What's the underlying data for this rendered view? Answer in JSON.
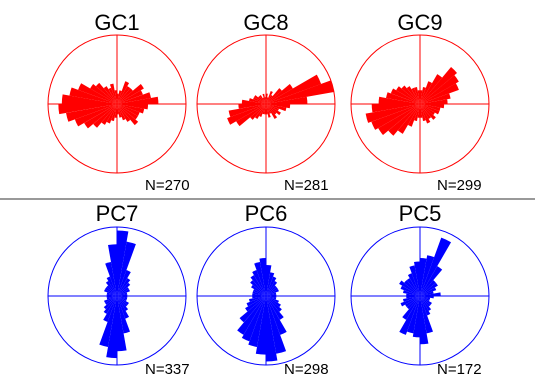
{
  "colors": {
    "gc": "#ff0000",
    "pc": "#0000ff",
    "divider": "#333333",
    "label": "#000000"
  },
  "chart_data": [
    {
      "type": "rose",
      "title": "GC1",
      "n_label": "N=270",
      "color": "#ff0000",
      "petals": [
        {
          "azimuth": 0,
          "length": 0.15
        },
        {
          "azimuth": 10,
          "length": 0.2
        },
        {
          "azimuth": 20,
          "length": 0.35
        },
        {
          "azimuth": 30,
          "length": 0.3
        },
        {
          "azimuth": 40,
          "length": 0.3
        },
        {
          "azimuth": 50,
          "length": 0.45
        },
        {
          "azimuth": 60,
          "length": 0.4
        },
        {
          "azimuth": 70,
          "length": 0.5
        },
        {
          "azimuth": 80,
          "length": 0.6
        },
        {
          "azimuth": 90,
          "length": 0.45
        },
        {
          "azimuth": 100,
          "length": 0.4
        },
        {
          "azimuth": 110,
          "length": 0.35
        },
        {
          "azimuth": 120,
          "length": 0.35
        },
        {
          "azimuth": 130,
          "length": 0.4
        },
        {
          "azimuth": 140,
          "length": 0.3
        },
        {
          "azimuth": 150,
          "length": 0.25
        },
        {
          "azimuth": 160,
          "length": 0.2
        },
        {
          "azimuth": 170,
          "length": 0.15
        },
        {
          "azimuth": 180,
          "length": 0.2
        },
        {
          "azimuth": 190,
          "length": 0.25
        },
        {
          "azimuth": 200,
          "length": 0.3
        },
        {
          "azimuth": 210,
          "length": 0.35
        },
        {
          "azimuth": 220,
          "length": 0.45
        },
        {
          "azimuth": 230,
          "length": 0.55
        },
        {
          "azimuth": 240,
          "length": 0.65
        },
        {
          "azimuth": 250,
          "length": 0.75
        },
        {
          "azimuth": 260,
          "length": 0.85
        },
        {
          "azimuth": 270,
          "length": 0.8
        },
        {
          "azimuth": 280,
          "length": 0.7
        },
        {
          "azimuth": 290,
          "length": 0.6
        },
        {
          "azimuth": 300,
          "length": 0.45
        },
        {
          "azimuth": 310,
          "length": 0.4
        },
        {
          "azimuth": 320,
          "length": 0.3
        },
        {
          "azimuth": 330,
          "length": 0.25
        },
        {
          "azimuth": 340,
          "length": 0.3
        },
        {
          "azimuth": 350,
          "length": 0.2
        }
      ]
    },
    {
      "type": "rose",
      "title": "GC8",
      "n_label": "N=281",
      "color": "#ff0000",
      "petals": [
        {
          "azimuth": 0,
          "length": 0.15
        },
        {
          "azimuth": 10,
          "length": 0.1
        },
        {
          "azimuth": 20,
          "length": 0.2
        },
        {
          "azimuth": 30,
          "length": 0.15
        },
        {
          "azimuth": 40,
          "length": 0.3
        },
        {
          "azimuth": 50,
          "length": 0.45
        },
        {
          "azimuth": 60,
          "length": 0.85
        },
        {
          "azimuth": 70,
          "length": 1.0
        },
        {
          "azimuth": 80,
          "length": 0.6
        },
        {
          "azimuth": 90,
          "length": 0.35
        },
        {
          "azimuth": 100,
          "length": 0.3
        },
        {
          "azimuth": 110,
          "length": 0.2
        },
        {
          "azimuth": 120,
          "length": 0.25
        },
        {
          "azimuth": 130,
          "length": 0.2
        },
        {
          "azimuth": 140,
          "length": 0.25
        },
        {
          "azimuth": 150,
          "length": 0.15
        },
        {
          "azimuth": 160,
          "length": 0.2
        },
        {
          "azimuth": 170,
          "length": 0.15
        },
        {
          "azimuth": 180,
          "length": 0.15
        },
        {
          "azimuth": 190,
          "length": 0.15
        },
        {
          "azimuth": 200,
          "length": 0.2
        },
        {
          "azimuth": 210,
          "length": 0.25
        },
        {
          "azimuth": 220,
          "length": 0.3
        },
        {
          "azimuth": 230,
          "length": 0.5
        },
        {
          "azimuth": 240,
          "length": 0.6
        },
        {
          "azimuth": 250,
          "length": 0.55
        },
        {
          "azimuth": 260,
          "length": 0.4
        },
        {
          "azimuth": 270,
          "length": 0.35
        },
        {
          "azimuth": 280,
          "length": 0.25
        },
        {
          "azimuth": 290,
          "length": 0.2
        },
        {
          "azimuth": 300,
          "length": 0.2
        },
        {
          "azimuth": 310,
          "length": 0.15
        },
        {
          "azimuth": 320,
          "length": 0.15
        },
        {
          "azimuth": 330,
          "length": 0.1
        },
        {
          "azimuth": 340,
          "length": 0.15
        },
        {
          "azimuth": 350,
          "length": 0.1
        }
      ]
    },
    {
      "type": "rose",
      "title": "GC9",
      "n_label": "N=299",
      "color": "#ff0000",
      "petals": [
        {
          "azimuth": 0,
          "length": 0.2
        },
        {
          "azimuth": 10,
          "length": 0.25
        },
        {
          "azimuth": 20,
          "length": 0.35
        },
        {
          "azimuth": 30,
          "length": 0.5
        },
        {
          "azimuth": 40,
          "length": 0.7
        },
        {
          "azimuth": 50,
          "length": 0.65
        },
        {
          "azimuth": 60,
          "length": 0.6
        },
        {
          "azimuth": 70,
          "length": 0.45
        },
        {
          "azimuth": 80,
          "length": 0.4
        },
        {
          "azimuth": 90,
          "length": 0.35
        },
        {
          "azimuth": 100,
          "length": 0.3
        },
        {
          "azimuth": 110,
          "length": 0.3
        },
        {
          "azimuth": 120,
          "length": 0.25
        },
        {
          "azimuth": 130,
          "length": 0.3
        },
        {
          "azimuth": 140,
          "length": 0.25
        },
        {
          "azimuth": 150,
          "length": 0.3
        },
        {
          "azimuth": 160,
          "length": 0.25
        },
        {
          "azimuth": 170,
          "length": 0.2
        },
        {
          "azimuth": 180,
          "length": 0.2
        },
        {
          "azimuth": 190,
          "length": 0.25
        },
        {
          "azimuth": 200,
          "length": 0.35
        },
        {
          "azimuth": 210,
          "length": 0.5
        },
        {
          "azimuth": 220,
          "length": 0.6
        },
        {
          "azimuth": 230,
          "length": 0.7
        },
        {
          "azimuth": 240,
          "length": 0.75
        },
        {
          "azimuth": 250,
          "length": 0.8
        },
        {
          "azimuth": 260,
          "length": 0.7
        },
        {
          "azimuth": 270,
          "length": 0.6
        },
        {
          "azimuth": 280,
          "length": 0.5
        },
        {
          "azimuth": 290,
          "length": 0.45
        },
        {
          "azimuth": 300,
          "length": 0.4
        },
        {
          "azimuth": 310,
          "length": 0.35
        },
        {
          "azimuth": 320,
          "length": 0.3
        },
        {
          "azimuth": 330,
          "length": 0.25
        },
        {
          "azimuth": 340,
          "length": 0.25
        },
        {
          "azimuth": 350,
          "length": 0.2
        }
      ]
    },
    {
      "type": "rose",
      "title": "PC7",
      "n_label": "N=337",
      "color": "#0000ff",
      "petals": [
        {
          "azimuth": 0,
          "length": 0.95
        },
        {
          "azimuth": 10,
          "length": 0.8
        },
        {
          "azimuth": 20,
          "length": 0.4
        },
        {
          "azimuth": 30,
          "length": 0.3
        },
        {
          "azimuth": 40,
          "length": 0.25
        },
        {
          "azimuth": 50,
          "length": 0.2
        },
        {
          "azimuth": 60,
          "length": 0.2
        },
        {
          "azimuth": 70,
          "length": 0.15
        },
        {
          "azimuth": 80,
          "length": 0.15
        },
        {
          "azimuth": 90,
          "length": 0.15
        },
        {
          "azimuth": 100,
          "length": 0.15
        },
        {
          "azimuth": 110,
          "length": 0.15
        },
        {
          "azimuth": 120,
          "length": 0.2
        },
        {
          "azimuth": 130,
          "length": 0.2
        },
        {
          "azimuth": 140,
          "length": 0.25
        },
        {
          "azimuth": 150,
          "length": 0.35
        },
        {
          "azimuth": 160,
          "length": 0.55
        },
        {
          "azimuth": 170,
          "length": 0.8
        },
        {
          "azimuth": 180,
          "length": 0.9
        },
        {
          "azimuth": 190,
          "length": 0.75
        },
        {
          "azimuth": 200,
          "length": 0.4
        },
        {
          "azimuth": 210,
          "length": 0.3
        },
        {
          "azimuth": 220,
          "length": 0.25
        },
        {
          "azimuth": 230,
          "length": 0.2
        },
        {
          "azimuth": 240,
          "length": 0.2
        },
        {
          "azimuth": 250,
          "length": 0.15
        },
        {
          "azimuth": 260,
          "length": 0.15
        },
        {
          "azimuth": 270,
          "length": 0.15
        },
        {
          "azimuth": 280,
          "length": 0.15
        },
        {
          "azimuth": 290,
          "length": 0.2
        },
        {
          "azimuth": 300,
          "length": 0.2
        },
        {
          "azimuth": 310,
          "length": 0.2
        },
        {
          "azimuth": 320,
          "length": 0.25
        },
        {
          "azimuth": 330,
          "length": 0.3
        },
        {
          "azimuth": 340,
          "length": 0.5
        },
        {
          "azimuth": 350,
          "length": 0.75
        }
      ]
    },
    {
      "type": "rose",
      "title": "PC6",
      "n_label": "N=298",
      "color": "#0000ff",
      "petals": [
        {
          "azimuth": 0,
          "length": 0.45
        },
        {
          "azimuth": 10,
          "length": 0.35
        },
        {
          "azimuth": 20,
          "length": 0.3
        },
        {
          "azimuth": 30,
          "length": 0.25
        },
        {
          "azimuth": 40,
          "length": 0.2
        },
        {
          "azimuth": 50,
          "length": 0.2
        },
        {
          "azimuth": 60,
          "length": 0.2
        },
        {
          "azimuth": 70,
          "length": 0.15
        },
        {
          "azimuth": 80,
          "length": 0.15
        },
        {
          "azimuth": 90,
          "length": 0.15
        },
        {
          "azimuth": 100,
          "length": 0.15
        },
        {
          "azimuth": 110,
          "length": 0.2
        },
        {
          "azimuth": 120,
          "length": 0.25
        },
        {
          "azimuth": 130,
          "length": 0.3
        },
        {
          "azimuth": 140,
          "length": 0.4
        },
        {
          "azimuth": 150,
          "length": 0.6
        },
        {
          "azimuth": 160,
          "length": 0.85
        },
        {
          "azimuth": 170,
          "length": 0.95
        },
        {
          "azimuth": 180,
          "length": 0.85
        },
        {
          "azimuth": 190,
          "length": 0.75
        },
        {
          "azimuth": 200,
          "length": 0.7
        },
        {
          "azimuth": 210,
          "length": 0.65
        },
        {
          "azimuth": 220,
          "length": 0.5
        },
        {
          "azimuth": 230,
          "length": 0.35
        },
        {
          "azimuth": 240,
          "length": 0.3
        },
        {
          "azimuth": 250,
          "length": 0.25
        },
        {
          "azimuth": 260,
          "length": 0.2
        },
        {
          "azimuth": 270,
          "length": 0.2
        },
        {
          "azimuth": 280,
          "length": 0.2
        },
        {
          "azimuth": 290,
          "length": 0.2
        },
        {
          "azimuth": 300,
          "length": 0.25
        },
        {
          "azimuth": 310,
          "length": 0.3
        },
        {
          "azimuth": 320,
          "length": 0.35
        },
        {
          "azimuth": 330,
          "length": 0.4
        },
        {
          "azimuth": 340,
          "length": 0.5
        },
        {
          "azimuth": 350,
          "length": 0.55
        }
      ]
    },
    {
      "type": "rose",
      "title": "PC5",
      "n_label": "N=172",
      "color": "#0000ff",
      "petals": [
        {
          "azimuth": 0,
          "length": 0.55
        },
        {
          "azimuth": 10,
          "length": 0.6
        },
        {
          "azimuth": 20,
          "length": 0.9
        },
        {
          "azimuth": 30,
          "length": 0.5
        },
        {
          "azimuth": 40,
          "length": 0.3
        },
        {
          "azimuth": 50,
          "length": 0.3
        },
        {
          "azimuth": 60,
          "length": 0.25
        },
        {
          "azimuth": 70,
          "length": 0.2
        },
        {
          "azimuth": 80,
          "length": 0.3
        },
        {
          "azimuth": 90,
          "length": 0.2
        },
        {
          "azimuth": 100,
          "length": 0.15
        },
        {
          "azimuth": 110,
          "length": 0.15
        },
        {
          "azimuth": 120,
          "length": 0.2
        },
        {
          "azimuth": 130,
          "length": 0.2
        },
        {
          "azimuth": 140,
          "length": 0.25
        },
        {
          "azimuth": 150,
          "length": 0.3
        },
        {
          "azimuth": 160,
          "length": 0.55
        },
        {
          "azimuth": 170,
          "length": 0.7
        },
        {
          "azimuth": 180,
          "length": 0.6
        },
        {
          "azimuth": 190,
          "length": 0.55
        },
        {
          "azimuth": 200,
          "length": 0.6
        },
        {
          "azimuth": 210,
          "length": 0.4
        },
        {
          "azimuth": 220,
          "length": 0.25
        },
        {
          "azimuth": 230,
          "length": 0.25
        },
        {
          "azimuth": 240,
          "length": 0.3
        },
        {
          "azimuth": 250,
          "length": 0.25
        },
        {
          "azimuth": 260,
          "length": 0.2
        },
        {
          "azimuth": 270,
          "length": 0.2
        },
        {
          "azimuth": 280,
          "length": 0.25
        },
        {
          "azimuth": 290,
          "length": 0.3
        },
        {
          "azimuth": 300,
          "length": 0.35
        },
        {
          "azimuth": 310,
          "length": 0.3
        },
        {
          "azimuth": 320,
          "length": 0.3
        },
        {
          "azimuth": 330,
          "length": 0.35
        },
        {
          "azimuth": 340,
          "length": 0.45
        },
        {
          "azimuth": 350,
          "length": 0.5
        }
      ]
    }
  ]
}
